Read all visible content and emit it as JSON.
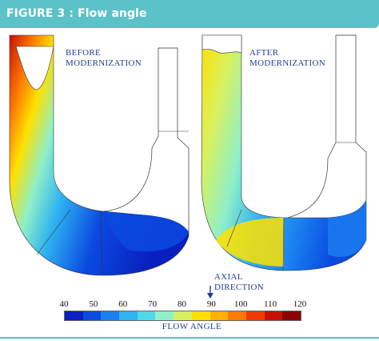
{
  "header": {
    "title": "FIGURE 3 : Flow angle",
    "color": "#5bc2c7"
  },
  "panels": {
    "before_label_line1": "BEFORE",
    "before_label_line2": "MODERNIZATION",
    "after_label_line1": "AFTER",
    "after_label_line2": "MODERNIZATION"
  },
  "annotation": {
    "line1": "AXIAL",
    "line2": "DIRECTION"
  },
  "colorbar": {
    "ticks": [
      "40",
      "50",
      "60",
      "70",
      "80",
      "90",
      "100",
      "110",
      "120"
    ],
    "label": "FLOW ANGLE",
    "min": 40,
    "max": 120,
    "colors": [
      "#0a1fbf",
      "#0a4ae0",
      "#1a7ff0",
      "#2fb3f2",
      "#4fd9ec",
      "#8ff0c8",
      "#d8f060",
      "#ffe000",
      "#ffb000",
      "#ff7a00",
      "#f23a00",
      "#c80f00",
      "#8c0000"
    ]
  }
}
